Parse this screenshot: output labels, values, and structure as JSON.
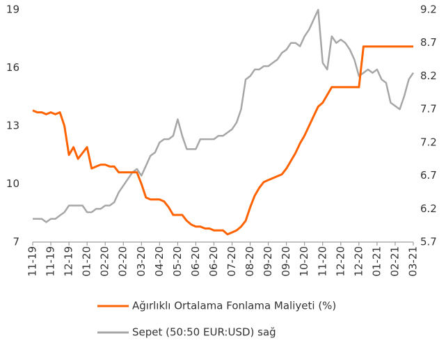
{
  "chart_data": {
    "type": "line",
    "categories": [
      "11-19",
      null,
      null,
      null,
      "11-19",
      null,
      null,
      null,
      "12-19",
      null,
      null,
      null,
      "01-20",
      null,
      null,
      null,
      "02-20",
      null,
      null,
      null,
      "02-20",
      null,
      null,
      null,
      "03-20",
      null,
      null,
      null,
      "04-20",
      null,
      null,
      null,
      "05-20",
      null,
      null,
      null,
      "06-20",
      null,
      null,
      null,
      "06-20",
      null,
      null,
      null,
      "07-20",
      null,
      null,
      null,
      "08-20",
      null,
      null,
      null,
      "09-20",
      null,
      null,
      null,
      "09-20",
      null,
      null,
      null,
      "10-20",
      null,
      null,
      null,
      "11-20",
      null,
      null,
      null,
      "12-20",
      null,
      null,
      null,
      "12-20",
      null,
      null,
      null,
      "01-21",
      null,
      null,
      null,
      "02-21",
      null,
      null,
      null,
      "03-21"
    ],
    "series": [
      {
        "name": "Ağırlıklı Ortalama Fonlama Maliyeti (%)",
        "color": "#ff6200",
        "axis": "y",
        "values": [
          13.8,
          13.7,
          13.7,
          13.6,
          13.7,
          13.6,
          13.7,
          13.0,
          11.5,
          11.9,
          11.3,
          11.6,
          11.9,
          10.8,
          10.9,
          11.0,
          11.0,
          10.9,
          10.9,
          10.6,
          10.6,
          10.6,
          10.6,
          10.6,
          10.0,
          9.3,
          9.2,
          9.2,
          9.2,
          9.1,
          8.8,
          8.4,
          8.4,
          8.4,
          8.1,
          7.9,
          7.8,
          7.8,
          7.7,
          7.7,
          7.6,
          7.6,
          7.6,
          7.4,
          7.5,
          7.6,
          7.8,
          8.1,
          8.8,
          9.4,
          9.8,
          10.1,
          10.2,
          10.3,
          10.4,
          10.5,
          10.8,
          11.2,
          11.6,
          12.1,
          12.5,
          13.0,
          13.5,
          14.0,
          14.2,
          14.6,
          15.0,
          15.0,
          15.0,
          15.0,
          15.0,
          15.0,
          15.0,
          17.1,
          17.1,
          17.1,
          17.1,
          17.1,
          17.1,
          17.1,
          17.1,
          17.1,
          17.1,
          17.1,
          17.1
        ]
      },
      {
        "name": "Sepet (50:50 EUR:USD) sağ",
        "color": "#a6a6a6",
        "axis": "y2",
        "values": [
          6.05,
          6.05,
          6.05,
          6.0,
          6.05,
          6.05,
          6.1,
          6.15,
          6.25,
          6.25,
          6.25,
          6.25,
          6.15,
          6.15,
          6.2,
          6.2,
          6.25,
          6.25,
          6.3,
          6.45,
          6.55,
          6.65,
          6.75,
          6.8,
          6.7,
          6.85,
          7.0,
          7.05,
          7.2,
          7.25,
          7.25,
          7.3,
          7.55,
          7.3,
          7.1,
          7.1,
          7.1,
          7.25,
          7.25,
          7.25,
          7.25,
          7.3,
          7.3,
          7.35,
          7.4,
          7.5,
          7.7,
          8.15,
          8.2,
          8.3,
          8.3,
          8.35,
          8.35,
          8.4,
          8.45,
          8.55,
          8.6,
          8.7,
          8.7,
          8.65,
          8.8,
          8.9,
          9.05,
          9.2,
          8.4,
          8.3,
          8.8,
          8.7,
          8.75,
          8.7,
          8.6,
          8.45,
          8.2,
          8.25,
          8.3,
          8.25,
          8.3,
          8.15,
          8.1,
          7.8,
          7.75,
          7.7,
          7.9,
          8.15,
          8.25
        ]
      }
    ],
    "ylim": [
      7,
      19
    ],
    "yticks": [
      7,
      10,
      13,
      16,
      19
    ],
    "y2lim": [
      5.7,
      9.2
    ],
    "y2ticks": [
      5.7,
      6.2,
      6.7,
      7.2,
      7.7,
      8.2,
      8.7,
      9.2
    ],
    "grid": false,
    "legend": "bottom"
  }
}
